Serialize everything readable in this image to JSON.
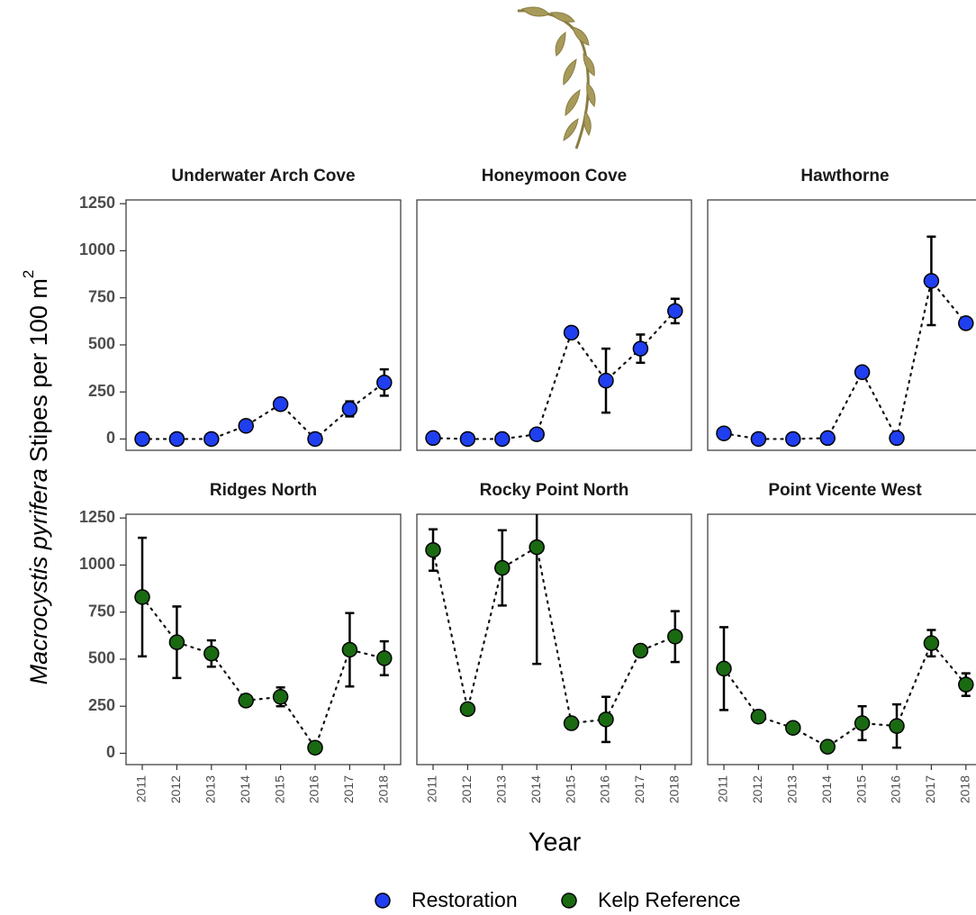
{
  "chart_data": [
    {
      "type": "line",
      "title": "Underwater Arch Cove",
      "categories": [
        "2011",
        "2012",
        "2013",
        "2014",
        "2015",
        "2016",
        "2017",
        "2018"
      ],
      "series": [
        {
          "name": "Restoration",
          "color": "#1f3ff0",
          "values": [
            0,
            0,
            0,
            70,
            185,
            0,
            160,
            300
          ],
          "errors": [
            0,
            0,
            0,
            10,
            10,
            0,
            40,
            70
          ]
        }
      ],
      "ylim": [
        -60,
        1270
      ],
      "yticks": [
        0,
        250,
        500,
        750,
        1000,
        1250
      ]
    },
    {
      "type": "line",
      "title": "Honeymoon Cove",
      "categories": [
        "2011",
        "2012",
        "2013",
        "2014",
        "2015",
        "2016",
        "2017",
        "2018"
      ],
      "series": [
        {
          "name": "Restoration",
          "color": "#1f3ff0",
          "values": [
            5,
            0,
            0,
            25,
            565,
            310,
            480,
            680
          ],
          "errors": [
            0,
            0,
            0,
            0,
            0,
            170,
            75,
            65
          ]
        }
      ],
      "ylim": [
        -60,
        1270
      ]
    },
    {
      "type": "line",
      "title": "Hawthorne",
      "categories": [
        "2011",
        "2012",
        "2013",
        "2014",
        "2015",
        "2016",
        "2017",
        "2018"
      ],
      "series": [
        {
          "name": "Restoration",
          "color": "#1f3ff0",
          "values": [
            30,
            0,
            0,
            5,
            355,
            5,
            840,
            615
          ],
          "errors": [
            0,
            0,
            0,
            0,
            0,
            0,
            235,
            25
          ]
        }
      ],
      "ylim": [
        -60,
        1270
      ]
    },
    {
      "type": "line",
      "title": "Ridges North",
      "categories": [
        "2011",
        "2012",
        "2013",
        "2014",
        "2015",
        "2016",
        "2017",
        "2018"
      ],
      "series": [
        {
          "name": "Kelp Reference",
          "color": "#1a6a12",
          "values": [
            830,
            590,
            530,
            280,
            300,
            30,
            550,
            505
          ],
          "errors": [
            315,
            190,
            70,
            0,
            50,
            0,
            195,
            90
          ]
        }
      ],
      "ylim": [
        -60,
        1270
      ],
      "yticks": [
        0,
        250,
        500,
        750,
        1000,
        1250
      ]
    },
    {
      "type": "line",
      "title": "Rocky Point North",
      "categories": [
        "2011",
        "2012",
        "2013",
        "2014",
        "2015",
        "2016",
        "2017",
        "2018"
      ],
      "series": [
        {
          "name": "Kelp Reference",
          "color": "#1a6a12",
          "values": [
            1080,
            235,
            985,
            1095,
            160,
            180,
            545,
            620
          ],
          "errors": [
            110,
            0,
            200,
            620,
            0,
            120,
            0,
            135
          ]
        }
      ],
      "ylim": [
        -60,
        1270
      ]
    },
    {
      "type": "line",
      "title": "Point Vicente West",
      "categories": [
        "2011",
        "2012",
        "2013",
        "2014",
        "2015",
        "2016",
        "2017",
        "2018"
      ],
      "series": [
        {
          "name": "Kelp Reference",
          "color": "#1a6a12",
          "values": [
            450,
            195,
            135,
            35,
            160,
            145,
            585,
            365
          ],
          "errors": [
            220,
            30,
            0,
            0,
            90,
            115,
            70,
            60
          ]
        }
      ],
      "ylim": [
        -60,
        1270
      ]
    }
  ],
  "ylabel": {
    "italic": "Macrocystis pyrifera",
    "rest": "Stipes per 100 m",
    "sup": "2"
  },
  "xlabel": "Year"
}
